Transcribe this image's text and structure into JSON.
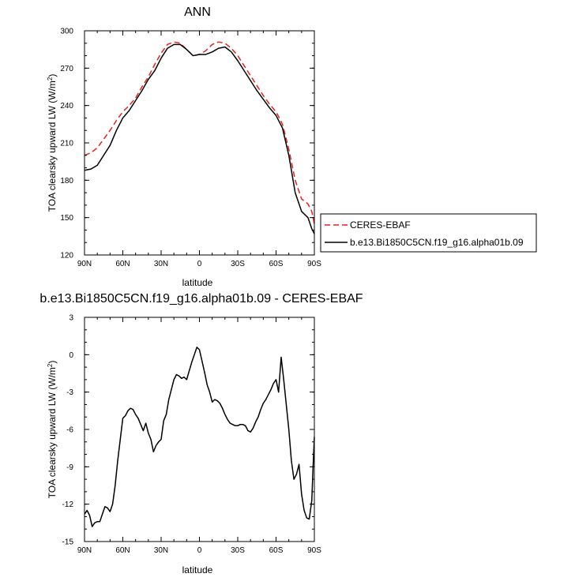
{
  "chart_data": [
    {
      "type": "line",
      "title": "ANN",
      "xlabel": "latitude",
      "ylabel": "TOA clearsky upward LW (W/m²)",
      "xlim": [
        90,
        -90
      ],
      "ylim": [
        120,
        300
      ],
      "x_ticks": [
        90,
        60,
        30,
        0,
        -30,
        -60,
        -90
      ],
      "x_tick_labels": [
        "90N",
        "60N",
        "30N",
        "0",
        "30S",
        "60S",
        "90S"
      ],
      "y_ticks": [
        120,
        150,
        180,
        210,
        240,
        270,
        300
      ],
      "y_tick_labels": [
        "120",
        "150",
        "180",
        "210",
        "240",
        "270",
        "300"
      ],
      "legend_position": "outside-right",
      "series": [
        {
          "name": "CERES-EBAF",
          "color": "#e8211c",
          "dash": "dashed",
          "x": [
            90,
            85,
            80,
            75,
            70,
            65,
            60,
            55,
            50,
            45,
            40,
            35,
            30,
            25,
            20,
            15,
            10,
            5,
            0,
            -5,
            -10,
            -15,
            -20,
            -25,
            -30,
            -35,
            -40,
            -45,
            -50,
            -55,
            -60,
            -65,
            -70,
            -75,
            -80,
            -85,
            -88,
            -90
          ],
          "y": [
            200,
            202,
            206,
            213,
            220,
            228,
            235,
            240,
            246,
            255,
            263,
            273,
            282,
            289,
            291,
            290,
            285,
            280,
            281,
            284,
            289,
            291,
            290,
            286,
            280,
            272,
            264,
            256,
            248,
            241,
            235,
            225,
            205,
            180,
            165,
            161,
            155,
            145
          ]
        },
        {
          "name": "b.e13.Bi1850C5CN.f19_g16.alpha01b.09",
          "color": "#000000",
          "dash": "solid",
          "x": [
            90,
            85,
            80,
            75,
            70,
            65,
            60,
            55,
            50,
            45,
            40,
            35,
            30,
            25,
            20,
            15,
            10,
            5,
            0,
            -5,
            -10,
            -15,
            -20,
            -25,
            -30,
            -35,
            -40,
            -45,
            -50,
            -55,
            -60,
            -65,
            -70,
            -75,
            -80,
            -85,
            -88,
            -90
          ],
          "y": [
            188,
            189,
            192,
            200,
            208,
            220,
            230,
            236,
            244,
            252,
            261,
            268,
            278,
            286,
            289,
            289,
            285,
            280,
            281,
            281,
            283,
            286,
            287,
            283,
            276,
            268,
            260,
            252,
            245,
            238,
            232,
            222,
            200,
            170,
            155,
            150,
            141,
            137
          ]
        }
      ]
    },
    {
      "type": "line",
      "title": "b.e13.Bi1850C5CN.f19_g16.alpha01b.09 - CERES-EBAF",
      "xlabel": "latitude",
      "ylabel": "TOA clearsky upward LW (W/m²)",
      "xlim": [
        90,
        -90
      ],
      "ylim": [
        -15,
        3
      ],
      "x_ticks": [
        90,
        60,
        30,
        0,
        -30,
        -60,
        -90
      ],
      "x_tick_labels": [
        "90N",
        "60N",
        "30N",
        "0",
        "30S",
        "60S",
        "90S"
      ],
      "y_ticks": [
        -15,
        -12,
        -9,
        -6,
        -3,
        0,
        3
      ],
      "y_tick_labels": [
        "-15",
        "-12",
        "-9",
        "-6",
        "-3",
        "0",
        "3"
      ],
      "series": [
        {
          "color": "#000000",
          "dash": "solid",
          "x": [
            90,
            88,
            86,
            84,
            82,
            80,
            78,
            76,
            74,
            72,
            70,
            68,
            66,
            64,
            62,
            60,
            58,
            56,
            54,
            52,
            50,
            48,
            46,
            44,
            42,
            40,
            38,
            36,
            34,
            32,
            30,
            28,
            26,
            24,
            22,
            20,
            18,
            16,
            14,
            12,
            10,
            8,
            6,
            4,
            2,
            0,
            -2,
            -4,
            -6,
            -8,
            -10,
            -12,
            -14,
            -16,
            -18,
            -20,
            -22,
            -24,
            -26,
            -28,
            -30,
            -32,
            -34,
            -36,
            -38,
            -40,
            -42,
            -44,
            -46,
            -48,
            -50,
            -52,
            -54,
            -56,
            -58,
            -60,
            -62,
            -64,
            -66,
            -68,
            -70,
            -72,
            -74,
            -76,
            -78,
            -80,
            -82,
            -84,
            -86,
            -88,
            -89,
            -90
          ],
          "y": [
            -12.8,
            -12.5,
            -12.9,
            -13.8,
            -13.5,
            -13.4,
            -13.4,
            -12.8,
            -12.2,
            -12.3,
            -12.6,
            -12.0,
            -10.5,
            -8.5,
            -6.8,
            -5.1,
            -4.9,
            -4.5,
            -4.3,
            -4.4,
            -4.8,
            -5.1,
            -5.6,
            -6.1,
            -5.5,
            -6.3,
            -6.8,
            -7.8,
            -7.3,
            -7.0,
            -6.8,
            -5.3,
            -4.8,
            -3.6,
            -2.8,
            -2.0,
            -1.6,
            -1.7,
            -1.9,
            -1.8,
            -2.0,
            -1.3,
            -0.6,
            0.0,
            0.6,
            0.4,
            -0.5,
            -1.4,
            -2.4,
            -3.0,
            -3.8,
            -3.6,
            -3.7,
            -3.9,
            -4.3,
            -4.8,
            -5.2,
            -5.5,
            -5.6,
            -5.7,
            -5.7,
            -5.6,
            -5.6,
            -5.7,
            -6.1,
            -6.2,
            -5.9,
            -5.4,
            -5.0,
            -4.4,
            -3.9,
            -3.6,
            -3.2,
            -2.8,
            -2.3,
            -2.0,
            -3.0,
            -0.2,
            -2.0,
            -4.0,
            -6.0,
            -8.5,
            -10.0,
            -9.6,
            -8.8,
            -11.2,
            -12.5,
            -13.1,
            -13.2,
            -11.7,
            -9.0,
            -6.6
          ]
        }
      ]
    }
  ]
}
